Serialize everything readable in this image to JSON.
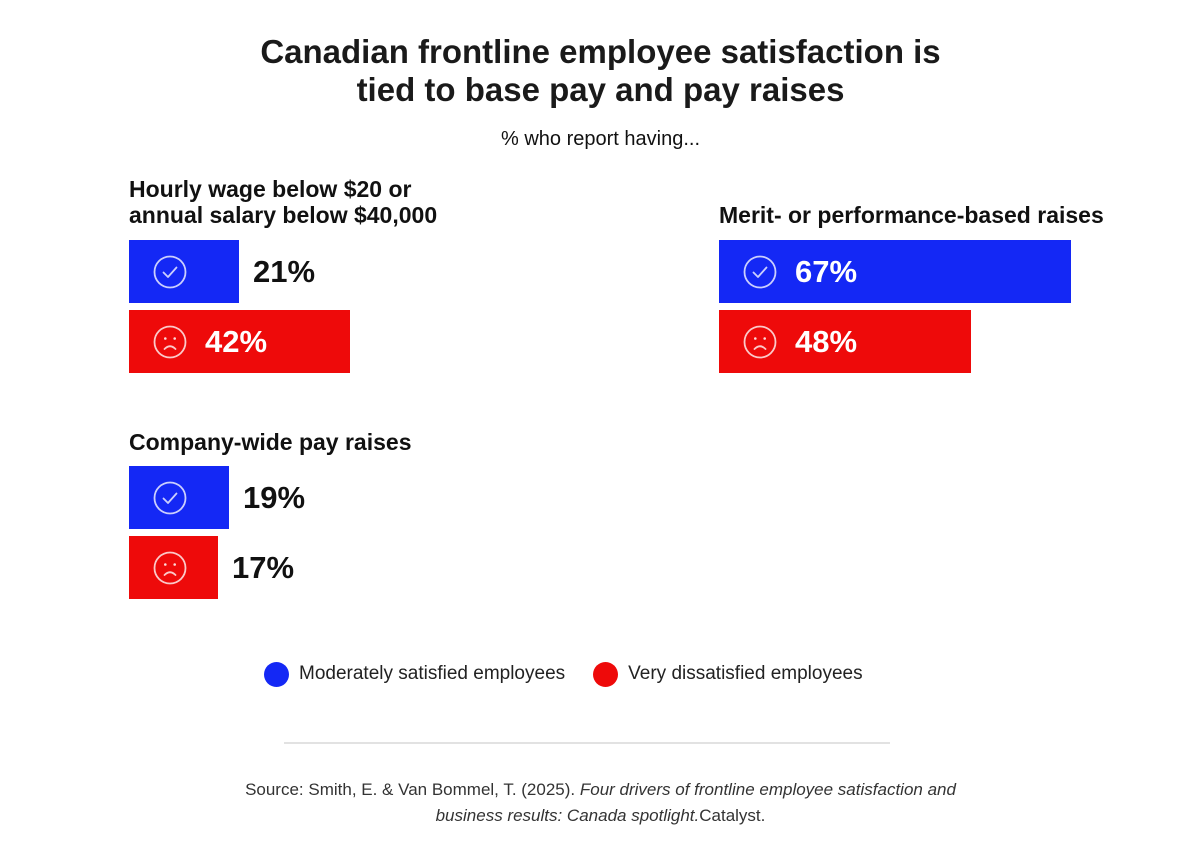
{
  "title_lines": [
    "Canadian frontline employee satisfaction is",
    "tied to base pay and pay raises"
  ],
  "subtitle": "% who report having...",
  "colors": {
    "satisfied": "#1428f5",
    "dissatisfied": "#ee0a0a"
  },
  "legend": [
    {
      "label": "Moderately satisfied employees",
      "icon": "circle-dot"
    },
    {
      "label": "Very dissatisfied employees",
      "icon": "circle-dot"
    }
  ],
  "chart_data": {
    "type": "bar",
    "title": "Canadian frontline employee satisfaction is tied to base pay and pay raises",
    "subtitle": "% who report having...",
    "series": [
      {
        "name": "Moderately satisfied employees",
        "icon": "check-circle-icon",
        "values": [
          21,
          67,
          19
        ]
      },
      {
        "name": "Very dissatisfied employees",
        "icon": "frown-face-icon",
        "values": [
          42,
          48,
          17
        ]
      }
    ],
    "groups": [
      {
        "title_lines": [
          "Hourly wage below $20 or",
          "annual salary below $40,000"
        ],
        "bars": [
          {
            "series": "Moderately satisfied employees",
            "value": 21,
            "label": "21%"
          },
          {
            "series": "Very dissatisfied employees",
            "value": 42,
            "label": "42%"
          }
        ]
      },
      {
        "title_lines": [
          "Merit- or performance-based raises"
        ],
        "bars": [
          {
            "series": "Moderately satisfied employees",
            "value": 67,
            "label": "67%"
          },
          {
            "series": "Very dissatisfied employees",
            "value": 48,
            "label": "48%"
          }
        ]
      },
      {
        "title_lines": [
          "Company-wide pay raises"
        ],
        "bars": [
          {
            "series": "Moderately satisfied employees",
            "value": 19,
            "label": "19%"
          },
          {
            "series": "Very dissatisfied employees",
            "value": 17,
            "label": "17%"
          }
        ]
      }
    ]
  },
  "source": {
    "prefix": "Source: Smith, E. & Van Bommel, T. (2025). ",
    "italic_1": "Four drivers of frontline employee satisfaction and",
    "italic_2": "business results: Canada spotlight.",
    "suffix": "Catalyst."
  }
}
